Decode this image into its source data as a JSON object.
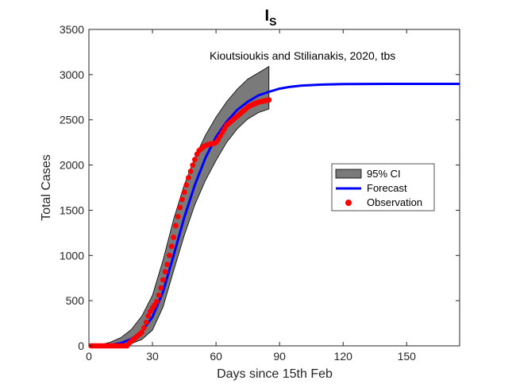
{
  "chart_data": {
    "type": "line",
    "title_main": "I",
    "title_sub": "S",
    "annotation": "Kioutsioukis and Stilianakis, 2020, tbs",
    "xlabel": "Days since 15th Feb",
    "ylabel": "Total Cases",
    "xlim": [
      0,
      175
    ],
    "ylim": [
      0,
      3500
    ],
    "xticks": [
      0,
      30,
      60,
      90,
      120,
      150
    ],
    "yticks": [
      0,
      500,
      1000,
      1500,
      2000,
      2500,
      3000,
      3500
    ],
    "grid": false,
    "legend_position": "right",
    "series": [
      {
        "name": "95% CI",
        "kind": "band",
        "color": "#7a7a7a",
        "x": [
          0,
          5,
          10,
          15,
          20,
          25,
          30,
          35,
          40,
          45,
          50,
          55,
          60,
          65,
          70,
          75,
          80,
          85
        ],
        "lower": [
          0,
          0,
          3,
          10,
          25,
          70,
          175,
          430,
          830,
          1220,
          1560,
          1830,
          2050,
          2250,
          2400,
          2510,
          2580,
          2620
        ],
        "upper": [
          5,
          10,
          40,
          90,
          180,
          330,
          560,
          950,
          1400,
          1780,
          2080,
          2330,
          2530,
          2700,
          2840,
          2950,
          3020,
          3090
        ]
      },
      {
        "name": "Forecast",
        "kind": "line",
        "color": "#0000ff",
        "x": [
          0,
          5,
          10,
          15,
          20,
          25,
          30,
          35,
          40,
          45,
          50,
          55,
          60,
          65,
          70,
          75,
          80,
          85,
          90,
          95,
          100,
          110,
          120,
          130,
          140,
          150,
          160,
          175
        ],
        "y": [
          0,
          2,
          10,
          30,
          75,
          160,
          320,
          600,
          1000,
          1420,
          1780,
          2080,
          2310,
          2480,
          2610,
          2700,
          2770,
          2810,
          2845,
          2865,
          2878,
          2890,
          2895,
          2897,
          2898,
          2898,
          2898,
          2898
        ]
      },
      {
        "name": "Observation",
        "kind": "scatter",
        "color": "#ff0000",
        "x": [
          1,
          2,
          3,
          4,
          5,
          6,
          7,
          8,
          9,
          10,
          11,
          12,
          13,
          14,
          15,
          16,
          17,
          18,
          19,
          20,
          21,
          22,
          23,
          24,
          25,
          26,
          27,
          28,
          29,
          30,
          31,
          32,
          33,
          34,
          35,
          36,
          37,
          38,
          39,
          40,
          41,
          42,
          43,
          44,
          45,
          46,
          47,
          48,
          49,
          50,
          51,
          52,
          53,
          54,
          55,
          56,
          57,
          58,
          59,
          60,
          61,
          62,
          63,
          64,
          65,
          66,
          67,
          68,
          69,
          70,
          71,
          72,
          73,
          74,
          75,
          76,
          77,
          78,
          79,
          80,
          81,
          82,
          83,
          84,
          85
        ],
        "y": [
          0,
          0,
          0,
          0,
          0,
          0,
          0,
          0,
          0,
          0,
          0,
          0,
          0,
          0,
          0,
          0,
          0,
          0,
          30,
          50,
          70,
          90,
          110,
          130,
          150,
          200,
          260,
          330,
          380,
          420,
          450,
          490,
          560,
          640,
          730,
          820,
          900,
          1000,
          1100,
          1200,
          1330,
          1430,
          1530,
          1620,
          1700,
          1780,
          1860,
          1930,
          2000,
          2060,
          2120,
          2160,
          2180,
          2200,
          2215,
          2225,
          2230,
          2235,
          2240,
          2250,
          2280,
          2320,
          2360,
          2400,
          2440,
          2460,
          2480,
          2500,
          2520,
          2540,
          2560,
          2580,
          2600,
          2620,
          2640,
          2655,
          2665,
          2675,
          2685,
          2695,
          2700,
          2705,
          2710,
          2715,
          2720
        ]
      }
    ]
  }
}
